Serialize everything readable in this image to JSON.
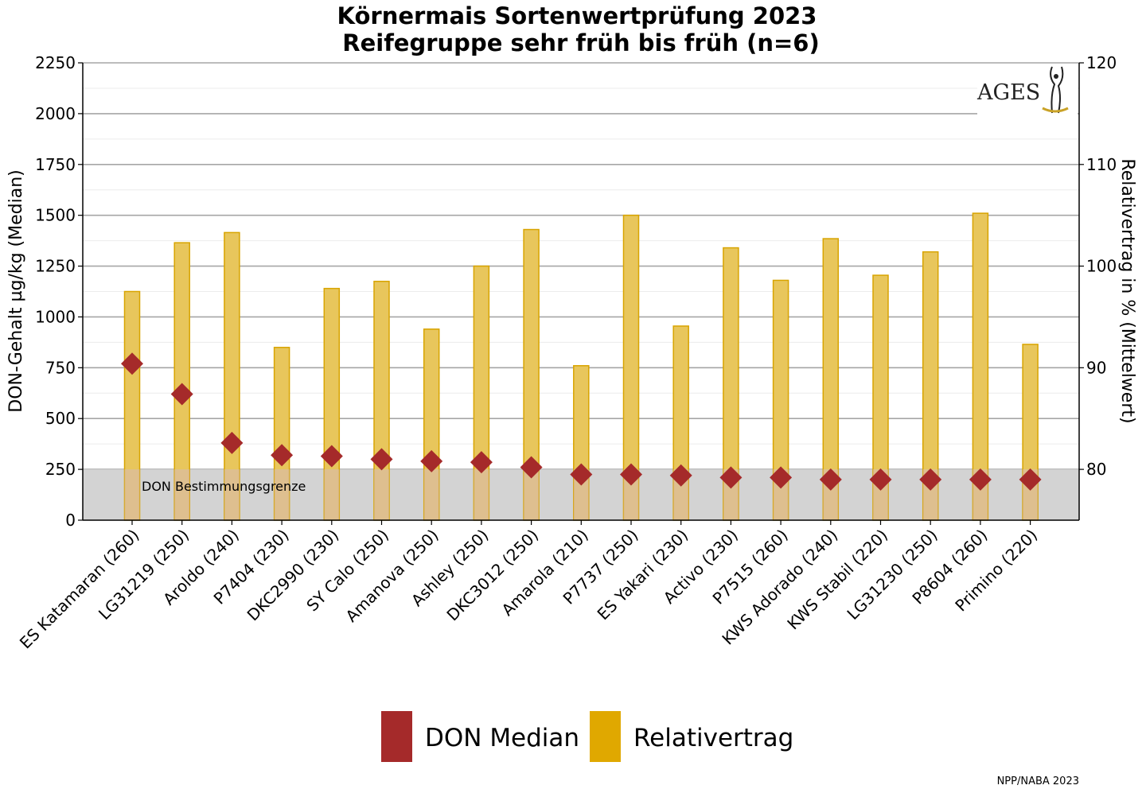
{
  "chart_data": {
    "type": "bar",
    "title": "Körnermais Sortenwertprüfung 2023",
    "subtitle": "Reifegruppe sehr früh bis früh (n=6)",
    "ylabel": "DON-Gehalt µg/kg (Median)",
    "y2label": "Relativertrag in % (Mittelwert)",
    "ylim": [
      0,
      2250
    ],
    "y2lim": [
      75,
      120
    ],
    "y_ticks": [
      "0",
      "250",
      "500",
      "750",
      "1000",
      "1250",
      "1500",
      "1750",
      "2000",
      "2250"
    ],
    "y2_ticks": [
      "80",
      "90",
      "100",
      "110",
      "120"
    ],
    "categories": [
      "ES Katamaran (260)",
      "LG31219 (250)",
      "Aroldo (240)",
      "P7404 (230)",
      "DKC2990 (230)",
      "SY Calo (250)",
      "Amanova (250)",
      "Ashley (250)",
      "DKC3012 (250)",
      "Amarola (210)",
      "P7737 (250)",
      "ES Yakari (230)",
      "Activo (230)",
      "P7515 (260)",
      "KWS Adorado (240)",
      "KWS Stabil (220)",
      "LG31230 (250)",
      "P8604 (260)",
      "Primino (220)"
    ],
    "series": [
      {
        "name": "DON Median",
        "type": "scatter",
        "axis": "left",
        "color": "#a52a2a",
        "values": [
          770,
          620,
          380,
          320,
          315,
          300,
          290,
          285,
          260,
          225,
          225,
          220,
          210,
          210,
          200,
          200,
          200,
          200,
          200
        ]
      },
      {
        "name": "Relativertrag",
        "type": "bar",
        "axis": "right",
        "color": "#e0a800",
        "values": [
          97.5,
          102.3,
          103.3,
          92.0,
          97.8,
          98.5,
          93.8,
          100.0,
          103.6,
          90.2,
          105.0,
          94.1,
          101.8,
          98.6,
          102.7,
          99.1,
          101.4,
          105.2,
          92.3
        ]
      }
    ],
    "detection_limit": {
      "value": 250,
      "label": "DON Bestimmungsgrenze"
    },
    "grid": true,
    "legend": {
      "position": "bottom"
    }
  },
  "logo": {
    "text": "AGES",
    "accent_color": "#c9a227",
    "icon": "ages-figure-icon"
  },
  "footer": {
    "text": "NPP/NABA 2023"
  }
}
